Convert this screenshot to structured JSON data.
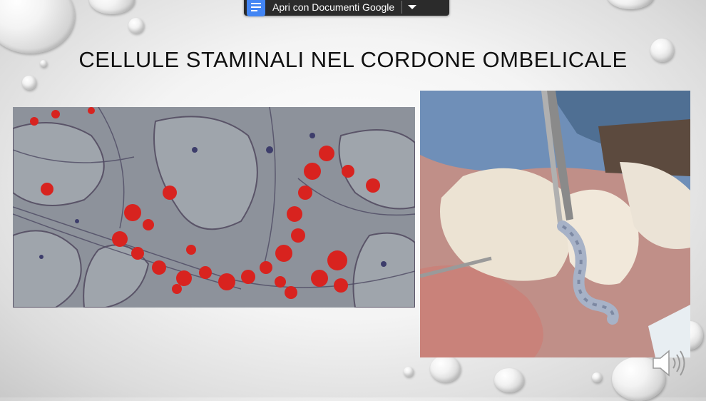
{
  "toolbar": {
    "open_with_label": "Apri con Documenti Google",
    "doc_icon": "google-docs-icon",
    "dropdown_icon": "caret-down-icon",
    "accent_color": "#4285f4"
  },
  "slide": {
    "title": "CELLULE STAMINALI NEL CORDONE OMBELICALE",
    "images": [
      {
        "name": "stained-stem-cells-micrograph"
      },
      {
        "name": "umbilical-cord-clamping-photo"
      }
    ],
    "audio_icon": "speaker-icon"
  }
}
